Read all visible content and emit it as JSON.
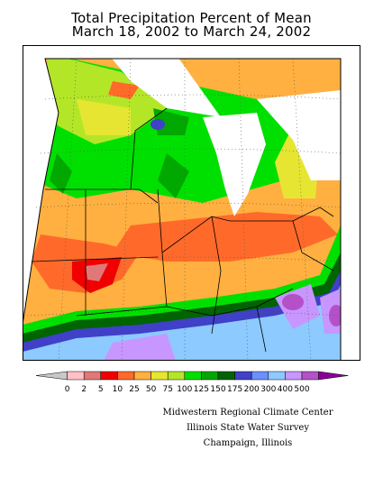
{
  "title": {
    "line1": "Total Precipitation Percent of Mean",
    "line2": "March 18, 2002 to March 24, 2002"
  },
  "legend": {
    "labels": [
      "0",
      "2",
      "5",
      "10",
      "25",
      "50",
      "75",
      "100",
      "125",
      "150",
      "175",
      "200",
      "300",
      "400",
      "500"
    ],
    "colors": [
      "#c8c8c8",
      "#ffc0c8",
      "#e07878",
      "#f00000",
      "#ff6a2a",
      "#ffb040",
      "#e6e632",
      "#b4e628",
      "#00e000",
      "#00a800",
      "#006400",
      "#4040c8",
      "#6a90ff",
      "#8ccaff",
      "#c896ff",
      "#b450c8",
      "#8c0096"
    ]
  },
  "credits": {
    "line1": "Midwestern Regional Climate Center",
    "line2": "Illinois State Water Survey",
    "line3": "Champaign, Illinois"
  }
}
